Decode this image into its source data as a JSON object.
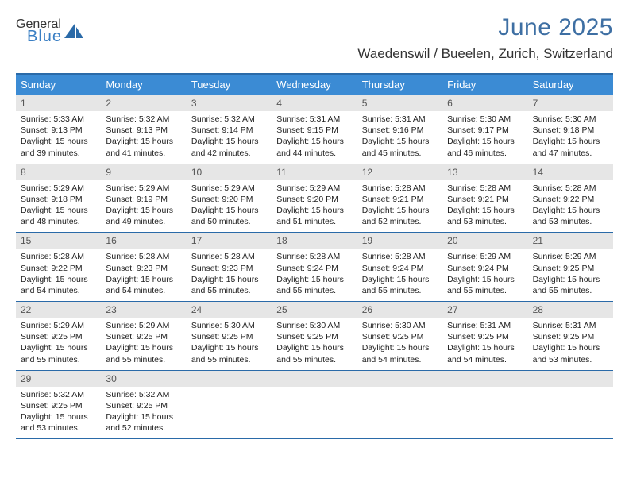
{
  "logo": {
    "general": "General",
    "blue": "Blue"
  },
  "title": "June 2025",
  "location": "Waedenswil / Bueelen, Zurich, Switzerland",
  "colors": {
    "header_bg": "#3b8bd4",
    "header_text": "#ffffff",
    "border": "#2a6aa8",
    "daynum_bg": "#e6e6e6",
    "title_color": "#3e6fa3",
    "logo_gray": "#6e6e6e",
    "logo_blue": "#3a7fc4",
    "sail_fill": "#2a6aa8"
  },
  "day_names": [
    "Sunday",
    "Monday",
    "Tuesday",
    "Wednesday",
    "Thursday",
    "Friday",
    "Saturday"
  ],
  "weeks": [
    {
      "nums": [
        "1",
        "2",
        "3",
        "4",
        "5",
        "6",
        "7"
      ],
      "cells": [
        {
          "sunrise": "5:33 AM",
          "sunset": "9:13 PM",
          "daylight": "15 hours and 39 minutes."
        },
        {
          "sunrise": "5:32 AM",
          "sunset": "9:13 PM",
          "daylight": "15 hours and 41 minutes."
        },
        {
          "sunrise": "5:32 AM",
          "sunset": "9:14 PM",
          "daylight": "15 hours and 42 minutes."
        },
        {
          "sunrise": "5:31 AM",
          "sunset": "9:15 PM",
          "daylight": "15 hours and 44 minutes."
        },
        {
          "sunrise": "5:31 AM",
          "sunset": "9:16 PM",
          "daylight": "15 hours and 45 minutes."
        },
        {
          "sunrise": "5:30 AM",
          "sunset": "9:17 PM",
          "daylight": "15 hours and 46 minutes."
        },
        {
          "sunrise": "5:30 AM",
          "sunset": "9:18 PM",
          "daylight": "15 hours and 47 minutes."
        }
      ]
    },
    {
      "nums": [
        "8",
        "9",
        "10",
        "11",
        "12",
        "13",
        "14"
      ],
      "cells": [
        {
          "sunrise": "5:29 AM",
          "sunset": "9:18 PM",
          "daylight": "15 hours and 48 minutes."
        },
        {
          "sunrise": "5:29 AM",
          "sunset": "9:19 PM",
          "daylight": "15 hours and 49 minutes."
        },
        {
          "sunrise": "5:29 AM",
          "sunset": "9:20 PM",
          "daylight": "15 hours and 50 minutes."
        },
        {
          "sunrise": "5:29 AM",
          "sunset": "9:20 PM",
          "daylight": "15 hours and 51 minutes."
        },
        {
          "sunrise": "5:28 AM",
          "sunset": "9:21 PM",
          "daylight": "15 hours and 52 minutes."
        },
        {
          "sunrise": "5:28 AM",
          "sunset": "9:21 PM",
          "daylight": "15 hours and 53 minutes."
        },
        {
          "sunrise": "5:28 AM",
          "sunset": "9:22 PM",
          "daylight": "15 hours and 53 minutes."
        }
      ]
    },
    {
      "nums": [
        "15",
        "16",
        "17",
        "18",
        "19",
        "20",
        "21"
      ],
      "cells": [
        {
          "sunrise": "5:28 AM",
          "sunset": "9:22 PM",
          "daylight": "15 hours and 54 minutes."
        },
        {
          "sunrise": "5:28 AM",
          "sunset": "9:23 PM",
          "daylight": "15 hours and 54 minutes."
        },
        {
          "sunrise": "5:28 AM",
          "sunset": "9:23 PM",
          "daylight": "15 hours and 55 minutes."
        },
        {
          "sunrise": "5:28 AM",
          "sunset": "9:24 PM",
          "daylight": "15 hours and 55 minutes."
        },
        {
          "sunrise": "5:28 AM",
          "sunset": "9:24 PM",
          "daylight": "15 hours and 55 minutes."
        },
        {
          "sunrise": "5:29 AM",
          "sunset": "9:24 PM",
          "daylight": "15 hours and 55 minutes."
        },
        {
          "sunrise": "5:29 AM",
          "sunset": "9:25 PM",
          "daylight": "15 hours and 55 minutes."
        }
      ]
    },
    {
      "nums": [
        "22",
        "23",
        "24",
        "25",
        "26",
        "27",
        "28"
      ],
      "cells": [
        {
          "sunrise": "5:29 AM",
          "sunset": "9:25 PM",
          "daylight": "15 hours and 55 minutes."
        },
        {
          "sunrise": "5:29 AM",
          "sunset": "9:25 PM",
          "daylight": "15 hours and 55 minutes."
        },
        {
          "sunrise": "5:30 AM",
          "sunset": "9:25 PM",
          "daylight": "15 hours and 55 minutes."
        },
        {
          "sunrise": "5:30 AM",
          "sunset": "9:25 PM",
          "daylight": "15 hours and 55 minutes."
        },
        {
          "sunrise": "5:30 AM",
          "sunset": "9:25 PM",
          "daylight": "15 hours and 54 minutes."
        },
        {
          "sunrise": "5:31 AM",
          "sunset": "9:25 PM",
          "daylight": "15 hours and 54 minutes."
        },
        {
          "sunrise": "5:31 AM",
          "sunset": "9:25 PM",
          "daylight": "15 hours and 53 minutes."
        }
      ]
    },
    {
      "nums": [
        "29",
        "30",
        "",
        "",
        "",
        "",
        ""
      ],
      "cells": [
        {
          "sunrise": "5:32 AM",
          "sunset": "9:25 PM",
          "daylight": "15 hours and 53 minutes."
        },
        {
          "sunrise": "5:32 AM",
          "sunset": "9:25 PM",
          "daylight": "15 hours and 52 minutes."
        },
        null,
        null,
        null,
        null,
        null
      ]
    }
  ],
  "labels": {
    "sunrise": "Sunrise: ",
    "sunset": "Sunset: ",
    "daylight": "Daylight: "
  }
}
